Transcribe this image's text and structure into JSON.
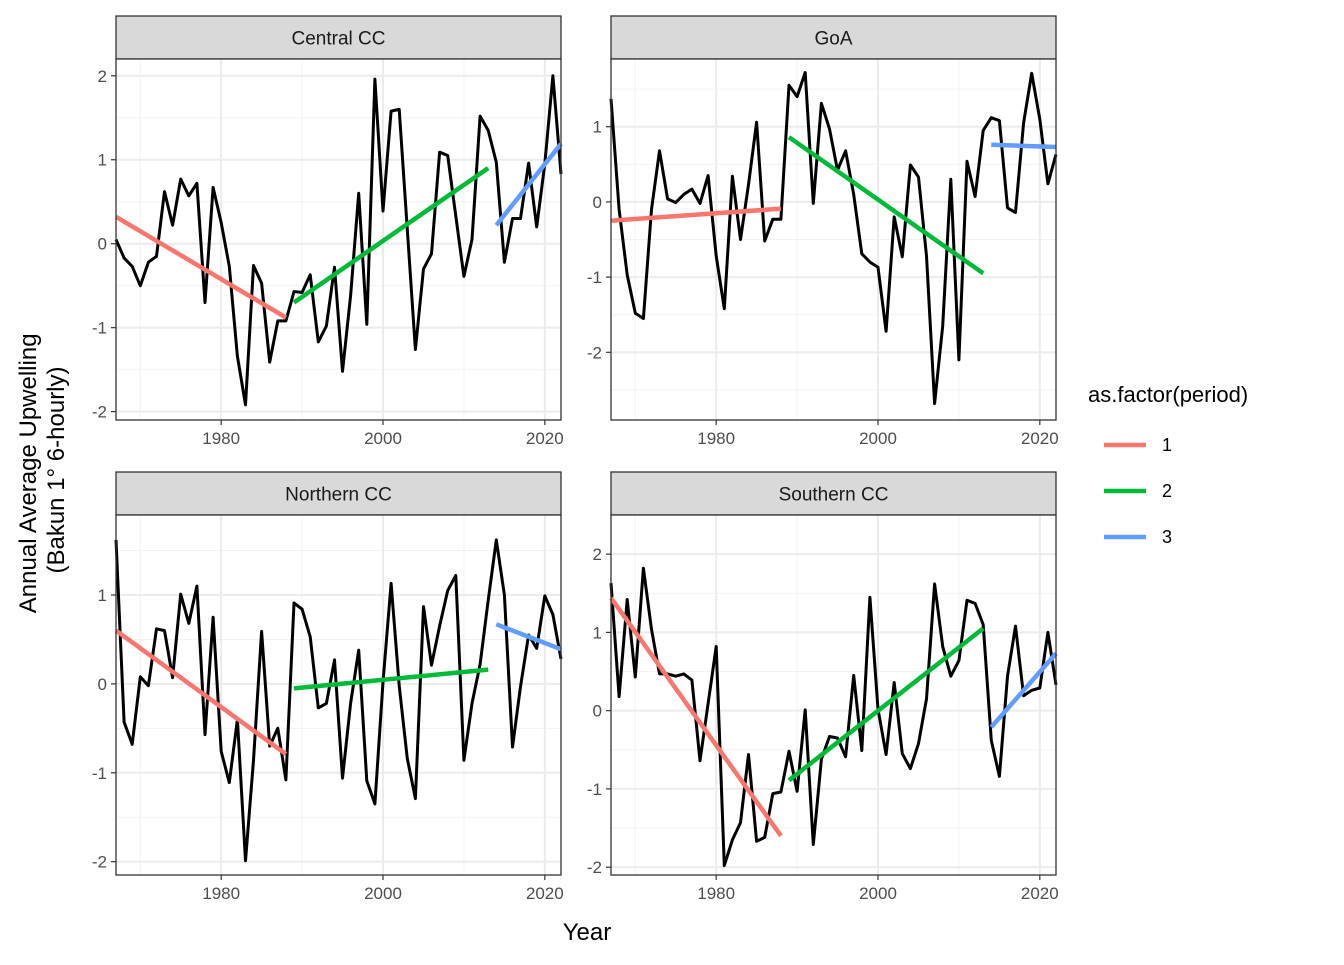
{
  "xlabel": "Year",
  "ylabel_line1": "Annual Average Upwelling",
  "ylabel_line2": "(Bakun 1° 6-hourly)",
  "legend": {
    "title": "as.factor(period)",
    "items": [
      {
        "label": "1",
        "color": "#F8766D"
      },
      {
        "label": "2",
        "color": "#00BA38"
      },
      {
        "label": "3",
        "color": "#619CFF"
      }
    ]
  },
  "chart_data": [
    {
      "type": "line",
      "title": "Central CC",
      "xlim": [
        1967,
        2022
      ],
      "ylim": [
        -2.1,
        2.2
      ],
      "x_ticks": [
        1980,
        2000,
        2020
      ],
      "y_ticks": [
        -2,
        -1,
        0,
        1,
        2
      ],
      "series": [
        {
          "x": [
            1967,
            1968,
            1969,
            1970,
            1971,
            1972,
            1973,
            1974,
            1975,
            1976,
            1977,
            1978,
            1979,
            1980,
            1981,
            1982,
            1983,
            1984,
            1985,
            1986,
            1987,
            1988,
            1989,
            1990,
            1991,
            1992,
            1993,
            1994,
            1995,
            1996,
            1997,
            1998,
            1999,
            2000,
            2001,
            2002,
            2003,
            2004,
            2005,
            2006,
            2007,
            2008,
            2009,
            2010,
            2011,
            2012,
            2013,
            2014,
            2015,
            2016,
            2017,
            2018,
            2019,
            2020,
            2021,
            2022
          ],
          "y": [
            0.05,
            -0.17,
            -0.27,
            -0.5,
            -0.22,
            -0.15,
            0.62,
            0.22,
            0.77,
            0.57,
            0.72,
            -0.7,
            0.67,
            0.25,
            -0.27,
            -1.34,
            -1.92,
            -0.26,
            -0.47,
            -1.41,
            -0.92,
            -0.92,
            -0.57,
            -0.58,
            -0.37,
            -1.17,
            -0.98,
            -0.28,
            -1.52,
            -0.62,
            0.6,
            -0.96,
            1.96,
            0.39,
            1.58,
            1.6,
            0.17,
            -1.26,
            -0.3,
            -0.12,
            1.09,
            1.05,
            0.33,
            -0.39,
            0.05,
            1.52,
            1.35,
            0.97,
            -0.22,
            0.3,
            0.3,
            0.96,
            0.2,
            0.95,
            2.0,
            0.83
          ]
        }
      ],
      "trends": [
        {
          "period": "1",
          "x": [
            1967,
            1988
          ],
          "y": [
            0.32,
            -0.88
          ]
        },
        {
          "period": "2",
          "x": [
            1989,
            2013
          ],
          "y": [
            -0.7,
            0.9
          ]
        },
        {
          "period": "3",
          "x": [
            2014,
            2022
          ],
          "y": [
            0.22,
            1.19
          ]
        }
      ]
    },
    {
      "type": "line",
      "title": "GoA",
      "xlim": [
        1967,
        2022
      ],
      "ylim": [
        -2.9,
        1.9
      ],
      "x_ticks": [
        1980,
        2000,
        2020
      ],
      "y_ticks": [
        -2,
        -1,
        0,
        1
      ],
      "series": [
        {
          "x": [
            1967,
            1968,
            1969,
            1970,
            1971,
            1972,
            1973,
            1974,
            1975,
            1976,
            1977,
            1978,
            1979,
            1980,
            1981,
            1982,
            1983,
            1984,
            1985,
            1986,
            1987,
            1988,
            1989,
            1990,
            1991,
            1992,
            1993,
            1994,
            1995,
            1996,
            1997,
            1998,
            1999,
            2000,
            2001,
            2002,
            2003,
            2004,
            2005,
            2006,
            2007,
            2008,
            2009,
            2010,
            2011,
            2012,
            2013,
            2014,
            2015,
            2016,
            2017,
            2018,
            2019,
            2020,
            2021,
            2022
          ],
          "y": [
            1.37,
            -0.1,
            -0.97,
            -1.48,
            -1.55,
            -0.1,
            0.68,
            0.04,
            -0.01,
            0.1,
            0.17,
            -0.02,
            0.35,
            -0.72,
            -1.42,
            0.34,
            -0.5,
            0.23,
            1.06,
            -0.52,
            -0.23,
            -0.23,
            1.55,
            1.4,
            1.72,
            -0.02,
            1.31,
            0.97,
            0.42,
            0.68,
            0.1,
            -0.69,
            -0.8,
            -0.87,
            -1.72,
            -0.2,
            -0.73,
            0.49,
            0.33,
            -0.72,
            -2.68,
            -1.65,
            0.3,
            -2.1,
            0.54,
            0.07,
            0.95,
            1.12,
            1.08,
            -0.08,
            -0.14,
            1.05,
            1.71,
            1.1,
            0.24,
            0.63
          ]
        }
      ],
      "trends": [
        {
          "period": "1",
          "x": [
            1967,
            1988
          ],
          "y": [
            -0.25,
            -0.09
          ]
        },
        {
          "period": "2",
          "x": [
            1989,
            2013
          ],
          "y": [
            0.86,
            -0.95
          ]
        },
        {
          "period": "3",
          "x": [
            2014,
            2022
          ],
          "y": [
            0.76,
            0.73
          ]
        }
      ]
    },
    {
      "type": "line",
      "title": "Northern CC",
      "xlim": [
        1967,
        2022
      ],
      "ylim": [
        -2.15,
        1.9
      ],
      "x_ticks": [
        1980,
        2000,
        2020
      ],
      "y_ticks": [
        -2,
        -1,
        0,
        1
      ],
      "series": [
        {
          "x": [
            1967,
            1968,
            1969,
            1970,
            1971,
            1972,
            1973,
            1974,
            1975,
            1976,
            1977,
            1978,
            1979,
            1980,
            1981,
            1982,
            1983,
            1984,
            1985,
            1986,
            1987,
            1988,
            1989,
            1990,
            1991,
            1992,
            1993,
            1994,
            1995,
            1996,
            1997,
            1998,
            1999,
            2000,
            2001,
            2002,
            2003,
            2004,
            2005,
            2006,
            2007,
            2008,
            2009,
            2010,
            2011,
            2012,
            2013,
            2014,
            2015,
            2016,
            2017,
            2018,
            2019,
            2020,
            2021,
            2022
          ],
          "y": [
            1.62,
            -0.43,
            -0.68,
            0.08,
            -0.02,
            0.62,
            0.6,
            0.07,
            1.01,
            0.68,
            1.1,
            -0.57,
            0.75,
            -0.76,
            -1.11,
            -0.4,
            -1.99,
            -0.86,
            0.59,
            -0.7,
            -0.5,
            -1.08,
            0.91,
            0.84,
            0.53,
            -0.27,
            -0.22,
            0.27,
            -1.06,
            -0.22,
            0.38,
            -1.09,
            -1.35,
            0.02,
            1.13,
            -0.02,
            -0.84,
            -1.29,
            0.87,
            0.21,
            0.65,
            1.05,
            1.22,
            -0.86,
            -0.22,
            0.22,
            0.94,
            1.62,
            1.0,
            -0.71,
            -0.03,
            0.55,
            0.4,
            0.99,
            0.78,
            0.28
          ]
        }
      ],
      "trends": [
        {
          "period": "1",
          "x": [
            1967,
            1988
          ],
          "y": [
            0.6,
            -0.79
          ]
        },
        {
          "period": "2",
          "x": [
            1989,
            2013
          ],
          "y": [
            -0.05,
            0.16
          ]
        },
        {
          "period": "3",
          "x": [
            2014,
            2022
          ],
          "y": [
            0.67,
            0.39
          ]
        }
      ]
    },
    {
      "type": "line",
      "title": "Southern CC",
      "xlim": [
        1967,
        2022
      ],
      "ylim": [
        -2.1,
        2.5
      ],
      "x_ticks": [
        1980,
        2000,
        2020
      ],
      "y_ticks": [
        -2,
        -1,
        0,
        1,
        2
      ],
      "series": [
        {
          "x": [
            1967,
            1968,
            1969,
            1970,
            1971,
            1972,
            1973,
            1974,
            1975,
            1976,
            1977,
            1978,
            1979,
            1980,
            1981,
            1982,
            1983,
            1984,
            1985,
            1986,
            1987,
            1988,
            1989,
            1990,
            1991,
            1992,
            1993,
            1994,
            1995,
            1996,
            1997,
            1998,
            1999,
            2000,
            2001,
            2002,
            2003,
            2004,
            2005,
            2006,
            2007,
            2008,
            2009,
            2010,
            2011,
            2012,
            2013,
            2014,
            2015,
            2016,
            2017,
            2018,
            2019,
            2020,
            2021,
            2022
          ],
          "y": [
            1.63,
            0.18,
            1.42,
            0.43,
            1.82,
            1.04,
            0.47,
            0.47,
            0.44,
            0.47,
            0.39,
            -0.64,
            0.09,
            0.82,
            -1.98,
            -1.65,
            -1.43,
            -0.56,
            -1.67,
            -1.62,
            -1.06,
            -1.04,
            -0.52,
            -1.03,
            0.01,
            -1.71,
            -0.62,
            -0.33,
            -0.35,
            -0.59,
            0.45,
            -0.51,
            1.45,
            0.02,
            -0.56,
            0.36,
            -0.55,
            -0.74,
            -0.42,
            0.15,
            1.62,
            0.82,
            0.44,
            0.64,
            1.41,
            1.37,
            1.1,
            -0.38,
            -0.84,
            0.44,
            1.08,
            0.19,
            0.26,
            0.29,
            1.0,
            0.33
          ]
        }
      ],
      "trends": [
        {
          "period": "1",
          "x": [
            1967,
            1988
          ],
          "y": [
            1.44,
            -1.6
          ]
        },
        {
          "period": "2",
          "x": [
            1989,
            2013
          ],
          "y": [
            -0.89,
            1.05
          ]
        },
        {
          "period": "3",
          "x": [
            2014,
            2022
          ],
          "y": [
            -0.21,
            0.73
          ]
        }
      ]
    }
  ]
}
